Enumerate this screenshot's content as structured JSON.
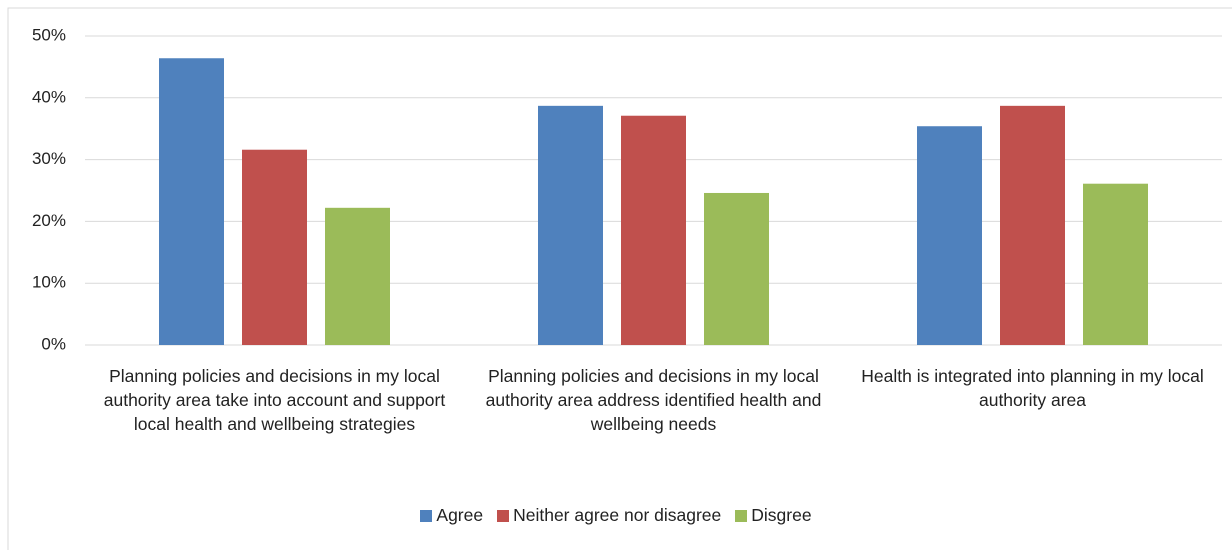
{
  "chart_data": {
    "type": "bar",
    "categories": [
      "Planning policies and decisions in my local authority area take into account and support local health and wellbeing strategies",
      "Planning policies and decisions in my local authority area address identified health and wellbeing needs",
      "Health is integrated into planning in my local authority area"
    ],
    "series": [
      {
        "name": "Agree",
        "color": "#4f81bd",
        "values": [
          46.4,
          38.7,
          35.4
        ]
      },
      {
        "name": "Neither agree nor disagree",
        "color": "#c0504d",
        "values": [
          31.6,
          37.1,
          38.7
        ]
      },
      {
        "name": "Disgree",
        "color": "#9bbb59",
        "values": [
          22.2,
          24.6,
          26.1
        ]
      }
    ],
    "ylim": [
      0,
      50
    ],
    "yticks": [
      {
        "value": 0,
        "label": "0%"
      },
      {
        "value": 10,
        "label": "10%"
      },
      {
        "value": 20,
        "label": "20%"
      },
      {
        "value": 30,
        "label": "30%"
      },
      {
        "value": 40,
        "label": "40%"
      },
      {
        "value": 50,
        "label": "50%"
      }
    ],
    "grid": true,
    "legend": "bottom"
  }
}
